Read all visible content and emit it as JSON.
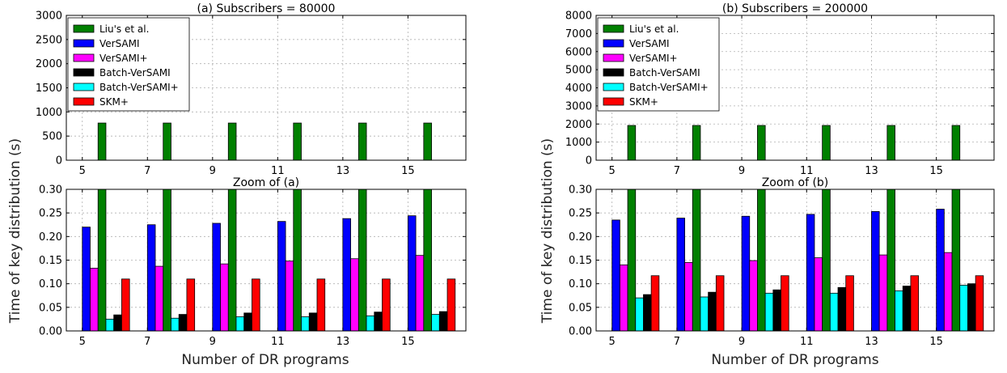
{
  "figure": {
    "xlabel": "Number of DR programs",
    "ylabel": "Time of key distribution (s)"
  },
  "chart_data": [
    {
      "type": "bar",
      "title": "(a) Subscribers = 80000",
      "categories": [
        "5",
        "7",
        "9",
        "11",
        "13",
        "15"
      ],
      "ylim": [
        0,
        3000
      ],
      "yticks": [
        0,
        500,
        1000,
        1500,
        2000,
        2500,
        3000
      ],
      "grid": true,
      "legend_position": "top-left",
      "series": [
        {
          "name": "Liu's et al.",
          "color": "#008000",
          "values": [
            770,
            770,
            770,
            770,
            770,
            770
          ]
        },
        {
          "name": "VerSAMI",
          "color": "#0000ff",
          "values": [
            0.22,
            0.225,
            0.228,
            0.232,
            0.238,
            0.244
          ]
        },
        {
          "name": "VerSAMI+",
          "color": "#ff00ff",
          "values": [
            0.133,
            0.137,
            0.142,
            0.148,
            0.153,
            0.16
          ]
        },
        {
          "name": "Batch-VerSAMI",
          "color": "#000000",
          "values": [
            0.034,
            0.035,
            0.038,
            0.038,
            0.04,
            0.041
          ]
        },
        {
          "name": "Batch-VerSAMI+",
          "color": "#00ffff",
          "values": [
            0.025,
            0.027,
            0.03,
            0.03,
            0.032,
            0.035
          ]
        },
        {
          "name": "SKM+",
          "color": "#ff0000",
          "values": [
            0.11,
            0.11,
            0.11,
            0.11,
            0.11,
            0.11
          ]
        }
      ]
    },
    {
      "type": "bar",
      "title": "Zoom of (a)",
      "categories": [
        "5",
        "7",
        "9",
        "11",
        "13",
        "15"
      ],
      "ylim": [
        0,
        0.3
      ],
      "yticks": [
        "0.00",
        "0.05",
        "0.10",
        "0.15",
        "0.20",
        "0.25",
        "0.30"
      ],
      "grid": true,
      "series": [
        {
          "name": "Liu's et al.",
          "color": "#008000",
          "values": [
            770,
            770,
            770,
            770,
            770,
            770
          ]
        },
        {
          "name": "VerSAMI",
          "color": "#0000ff",
          "values": [
            0.22,
            0.225,
            0.228,
            0.232,
            0.238,
            0.244
          ]
        },
        {
          "name": "VerSAMI+",
          "color": "#ff00ff",
          "values": [
            0.133,
            0.137,
            0.142,
            0.148,
            0.153,
            0.16
          ]
        },
        {
          "name": "Batch-VerSAMI",
          "color": "#000000",
          "values": [
            0.034,
            0.035,
            0.038,
            0.038,
            0.04,
            0.041
          ]
        },
        {
          "name": "Batch-VerSAMI+",
          "color": "#00ffff",
          "values": [
            0.025,
            0.027,
            0.03,
            0.03,
            0.032,
            0.035
          ]
        },
        {
          "name": "SKM+",
          "color": "#ff0000",
          "values": [
            0.11,
            0.11,
            0.11,
            0.11,
            0.11,
            0.11
          ]
        }
      ]
    },
    {
      "type": "bar",
      "title": "(b) Subscribers = 200000",
      "categories": [
        "5",
        "7",
        "9",
        "11",
        "13",
        "15"
      ],
      "ylim": [
        0,
        8000
      ],
      "yticks": [
        0,
        1000,
        2000,
        3000,
        4000,
        5000,
        6000,
        7000,
        8000
      ],
      "grid": true,
      "legend_position": "top-left",
      "series": [
        {
          "name": "Liu's et al.",
          "color": "#008000",
          "values": [
            1920,
            1920,
            1920,
            1920,
            1920,
            1920
          ]
        },
        {
          "name": "VerSAMI",
          "color": "#0000ff",
          "values": [
            0.235,
            0.239,
            0.243,
            0.247,
            0.253,
            0.258
          ]
        },
        {
          "name": "VerSAMI+",
          "color": "#ff00ff",
          "values": [
            0.14,
            0.145,
            0.149,
            0.155,
            0.161,
            0.166
          ]
        },
        {
          "name": "Batch-VerSAMI",
          "color": "#000000",
          "values": [
            0.077,
            0.082,
            0.087,
            0.092,
            0.095,
            0.1
          ]
        },
        {
          "name": "Batch-VerSAMI+",
          "color": "#00ffff",
          "values": [
            0.07,
            0.072,
            0.08,
            0.08,
            0.085,
            0.097
          ]
        },
        {
          "name": "SKM+",
          "color": "#ff0000",
          "values": [
            0.117,
            0.117,
            0.117,
            0.117,
            0.117,
            0.117
          ]
        }
      ]
    },
    {
      "type": "bar",
      "title": "Zoom of (b)",
      "categories": [
        "5",
        "7",
        "9",
        "11",
        "13",
        "15"
      ],
      "ylim": [
        0,
        0.3
      ],
      "yticks": [
        "0.00",
        "0.05",
        "0.10",
        "0.15",
        "0.20",
        "0.25",
        "0.30"
      ],
      "grid": true,
      "series": [
        {
          "name": "Liu's et al.",
          "color": "#008000",
          "values": [
            1920,
            1920,
            1920,
            1920,
            1920,
            1920
          ]
        },
        {
          "name": "VerSAMI",
          "color": "#0000ff",
          "values": [
            0.235,
            0.239,
            0.243,
            0.247,
            0.253,
            0.258
          ]
        },
        {
          "name": "VerSAMI+",
          "color": "#ff00ff",
          "values": [
            0.14,
            0.145,
            0.149,
            0.155,
            0.161,
            0.166
          ]
        },
        {
          "name": "Batch-VerSAMI",
          "color": "#000000",
          "values": [
            0.077,
            0.082,
            0.087,
            0.092,
            0.095,
            0.1
          ]
        },
        {
          "name": "Batch-VerSAMI+",
          "color": "#00ffff",
          "values": [
            0.07,
            0.072,
            0.08,
            0.08,
            0.085,
            0.097
          ]
        },
        {
          "name": "SKM+",
          "color": "#ff0000",
          "values": [
            0.117,
            0.117,
            0.117,
            0.117,
            0.117,
            0.117
          ]
        }
      ]
    }
  ]
}
